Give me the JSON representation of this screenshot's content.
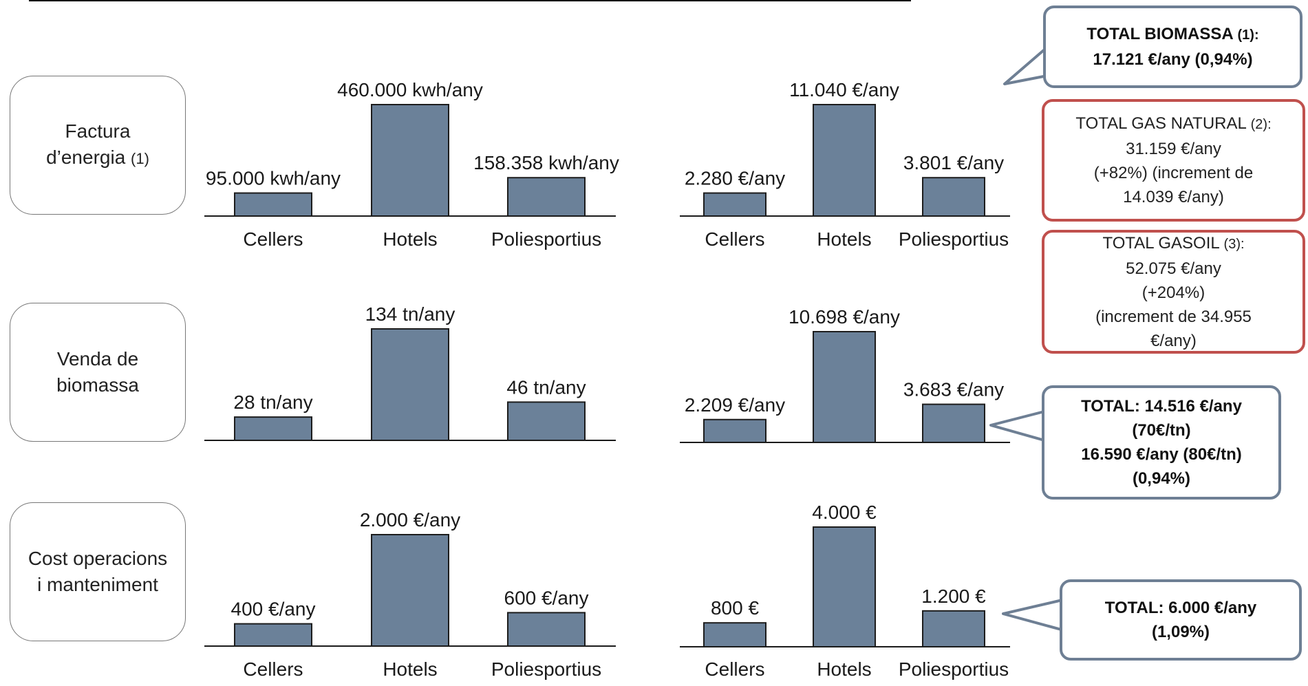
{
  "rows": [
    {
      "label_lines": [
        "Factura",
        "d’energia"
      ],
      "label_suffix": "(1)"
    },
    {
      "label_lines": [
        "Venda de",
        "biomassa"
      ],
      "label_suffix": ""
    },
    {
      "label_lines": [
        "Cost operacions",
        "i manteniment"
      ],
      "label_suffix": ""
    }
  ],
  "colors": {
    "bar": "#6b8199",
    "bar_border": "#1c1c1c",
    "callout_blue": "#6e7f94",
    "callout_red": "#c0504d"
  },
  "chart_data": [
    {
      "type": "bar",
      "categories": [
        "Cellers",
        "Hotels",
        "Poliesportius"
      ],
      "values": [
        95000,
        460000,
        158358
      ],
      "data_labels": [
        "95.000 kwh/any",
        "460.000 kwh/any",
        "158.358 kwh/any"
      ],
      "title": "",
      "xlabel": "",
      "ylabel": "",
      "ylim": [
        0,
        460000
      ],
      "grid": false
    },
    {
      "type": "bar",
      "categories": [
        "Cellers",
        "Hotels",
        "Poliesportius"
      ],
      "values": [
        2280,
        11040,
        3801
      ],
      "data_labels": [
        "2.280 €/any",
        "11.040 €/any",
        "3.801 €/any"
      ],
      "title": "",
      "xlabel": "",
      "ylabel": "",
      "ylim": [
        0,
        11040
      ],
      "grid": false
    },
    {
      "type": "bar",
      "categories": [
        "Cellers",
        "Hotels",
        "Poliesportius"
      ],
      "values": [
        28,
        134,
        46
      ],
      "data_labels": [
        "28 tn/any",
        "134 tn/any",
        "46 tn/any"
      ],
      "title": "",
      "xlabel": "",
      "ylabel": "",
      "ylim": [
        0,
        134
      ],
      "grid": false
    },
    {
      "type": "bar",
      "categories": [
        "Cellers",
        "Hotels",
        "Poliesportius"
      ],
      "values": [
        2209,
        10698,
        3683
      ],
      "data_labels": [
        "2.209 €/any",
        "10.698 €/any",
        "3.683 €/any"
      ],
      "title": "",
      "xlabel": "",
      "ylabel": "",
      "ylim": [
        0,
        10698
      ],
      "grid": false
    },
    {
      "type": "bar",
      "categories": [
        "Cellers",
        "Hotels",
        "Poliesportius"
      ],
      "values": [
        400,
        2000,
        600
      ],
      "data_labels": [
        "400 €/any",
        "2.000 €/any",
        "600 €/any"
      ],
      "title": "",
      "xlabel": "",
      "ylabel": "",
      "ylim": [
        0,
        2000
      ],
      "grid": false
    },
    {
      "type": "bar",
      "categories": [
        "Cellers",
        "Hotels",
        "Poliesportius"
      ],
      "values": [
        800,
        4000,
        1200
      ],
      "data_labels": [
        "800 €",
        "4.000 €",
        "1.200 €"
      ],
      "title": "",
      "xlabel": "",
      "ylabel": "",
      "ylim": [
        0,
        4000
      ],
      "grid": false
    }
  ],
  "callouts": {
    "biomassa": {
      "line1": "TOTAL BIOMASSA",
      "note": "(1):",
      "line2": "17.121 €/any (0,94%)"
    },
    "gas_natural": {
      "line1": "TOTAL GAS NATURAL",
      "note": "(2):",
      "line2": "31.159 €/any",
      "line3": "(+82%) (increment de",
      "line4": "14.039 €/any)"
    },
    "gasoil": {
      "line1": "TOTAL GASOIL",
      "note": "(3):",
      "line2": "52.075 €/any",
      "line3": "(+204%)",
      "line4": "(increment de 34.955",
      "line5": "€/any)"
    },
    "venda_total": {
      "line1": "TOTAL: 14.516 €/any",
      "line2": "(70€/tn)",
      "line3": "16.590 €/any (80€/tn)",
      "line4": "(0,94%)"
    },
    "om_total": {
      "line1": "TOTAL: 6.000 €/any",
      "line2": "(1,09%)"
    }
  }
}
